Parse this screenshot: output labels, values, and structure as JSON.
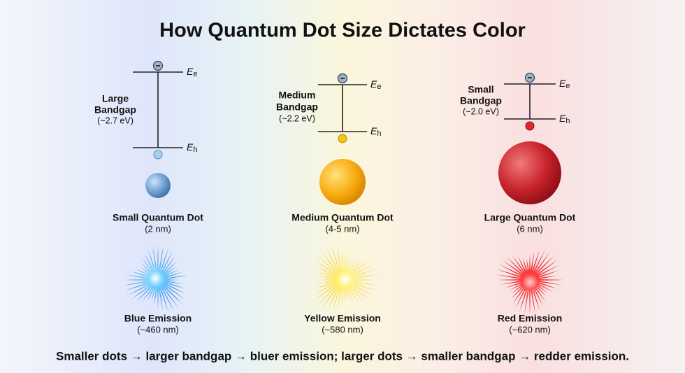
{
  "title": "How Quantum Dot Size Dictates Color",
  "columns": [
    {
      "bandgap": [
        "Large",
        "Bandgap",
        "(~2.7 eV)"
      ],
      "upper_level": {
        "symbol": "E",
        "sub": "e"
      },
      "lower_level": {
        "symbol": "E",
        "sub": "h"
      },
      "dot": "Small Quantum Dot",
      "size": "(2 nm)",
      "emission": "Blue Emission",
      "wavelength": "(~460 nm)"
    },
    {
      "bandgap": [
        "Medium",
        "Bandgap",
        "(~2.2 eV)"
      ],
      "upper_level": {
        "symbol": "E",
        "sub": "e"
      },
      "lower_level": {
        "symbol": "E",
        "sub": "h"
      },
      "dot": "Medium Quantum Dot",
      "size": "(4-5 nm)",
      "emission": "Yellow Emission",
      "wavelength": "(~580 nm)"
    },
    {
      "bandgap": [
        "Small",
        "Bandgap",
        "(~2.0 eV)"
      ],
      "upper_level": {
        "symbol": "E",
        "sub": "e"
      },
      "lower_level": {
        "symbol": "E",
        "sub": "h"
      },
      "dot": "Large Quantum Dot",
      "size": "(6 nm)",
      "emission": "Red Emission",
      "wavelength": "(~620 nm)"
    }
  ],
  "caption": "Smaller dots → larger bandgap → bluer emission; larger dots → smaller bandgap → redder emission."
}
